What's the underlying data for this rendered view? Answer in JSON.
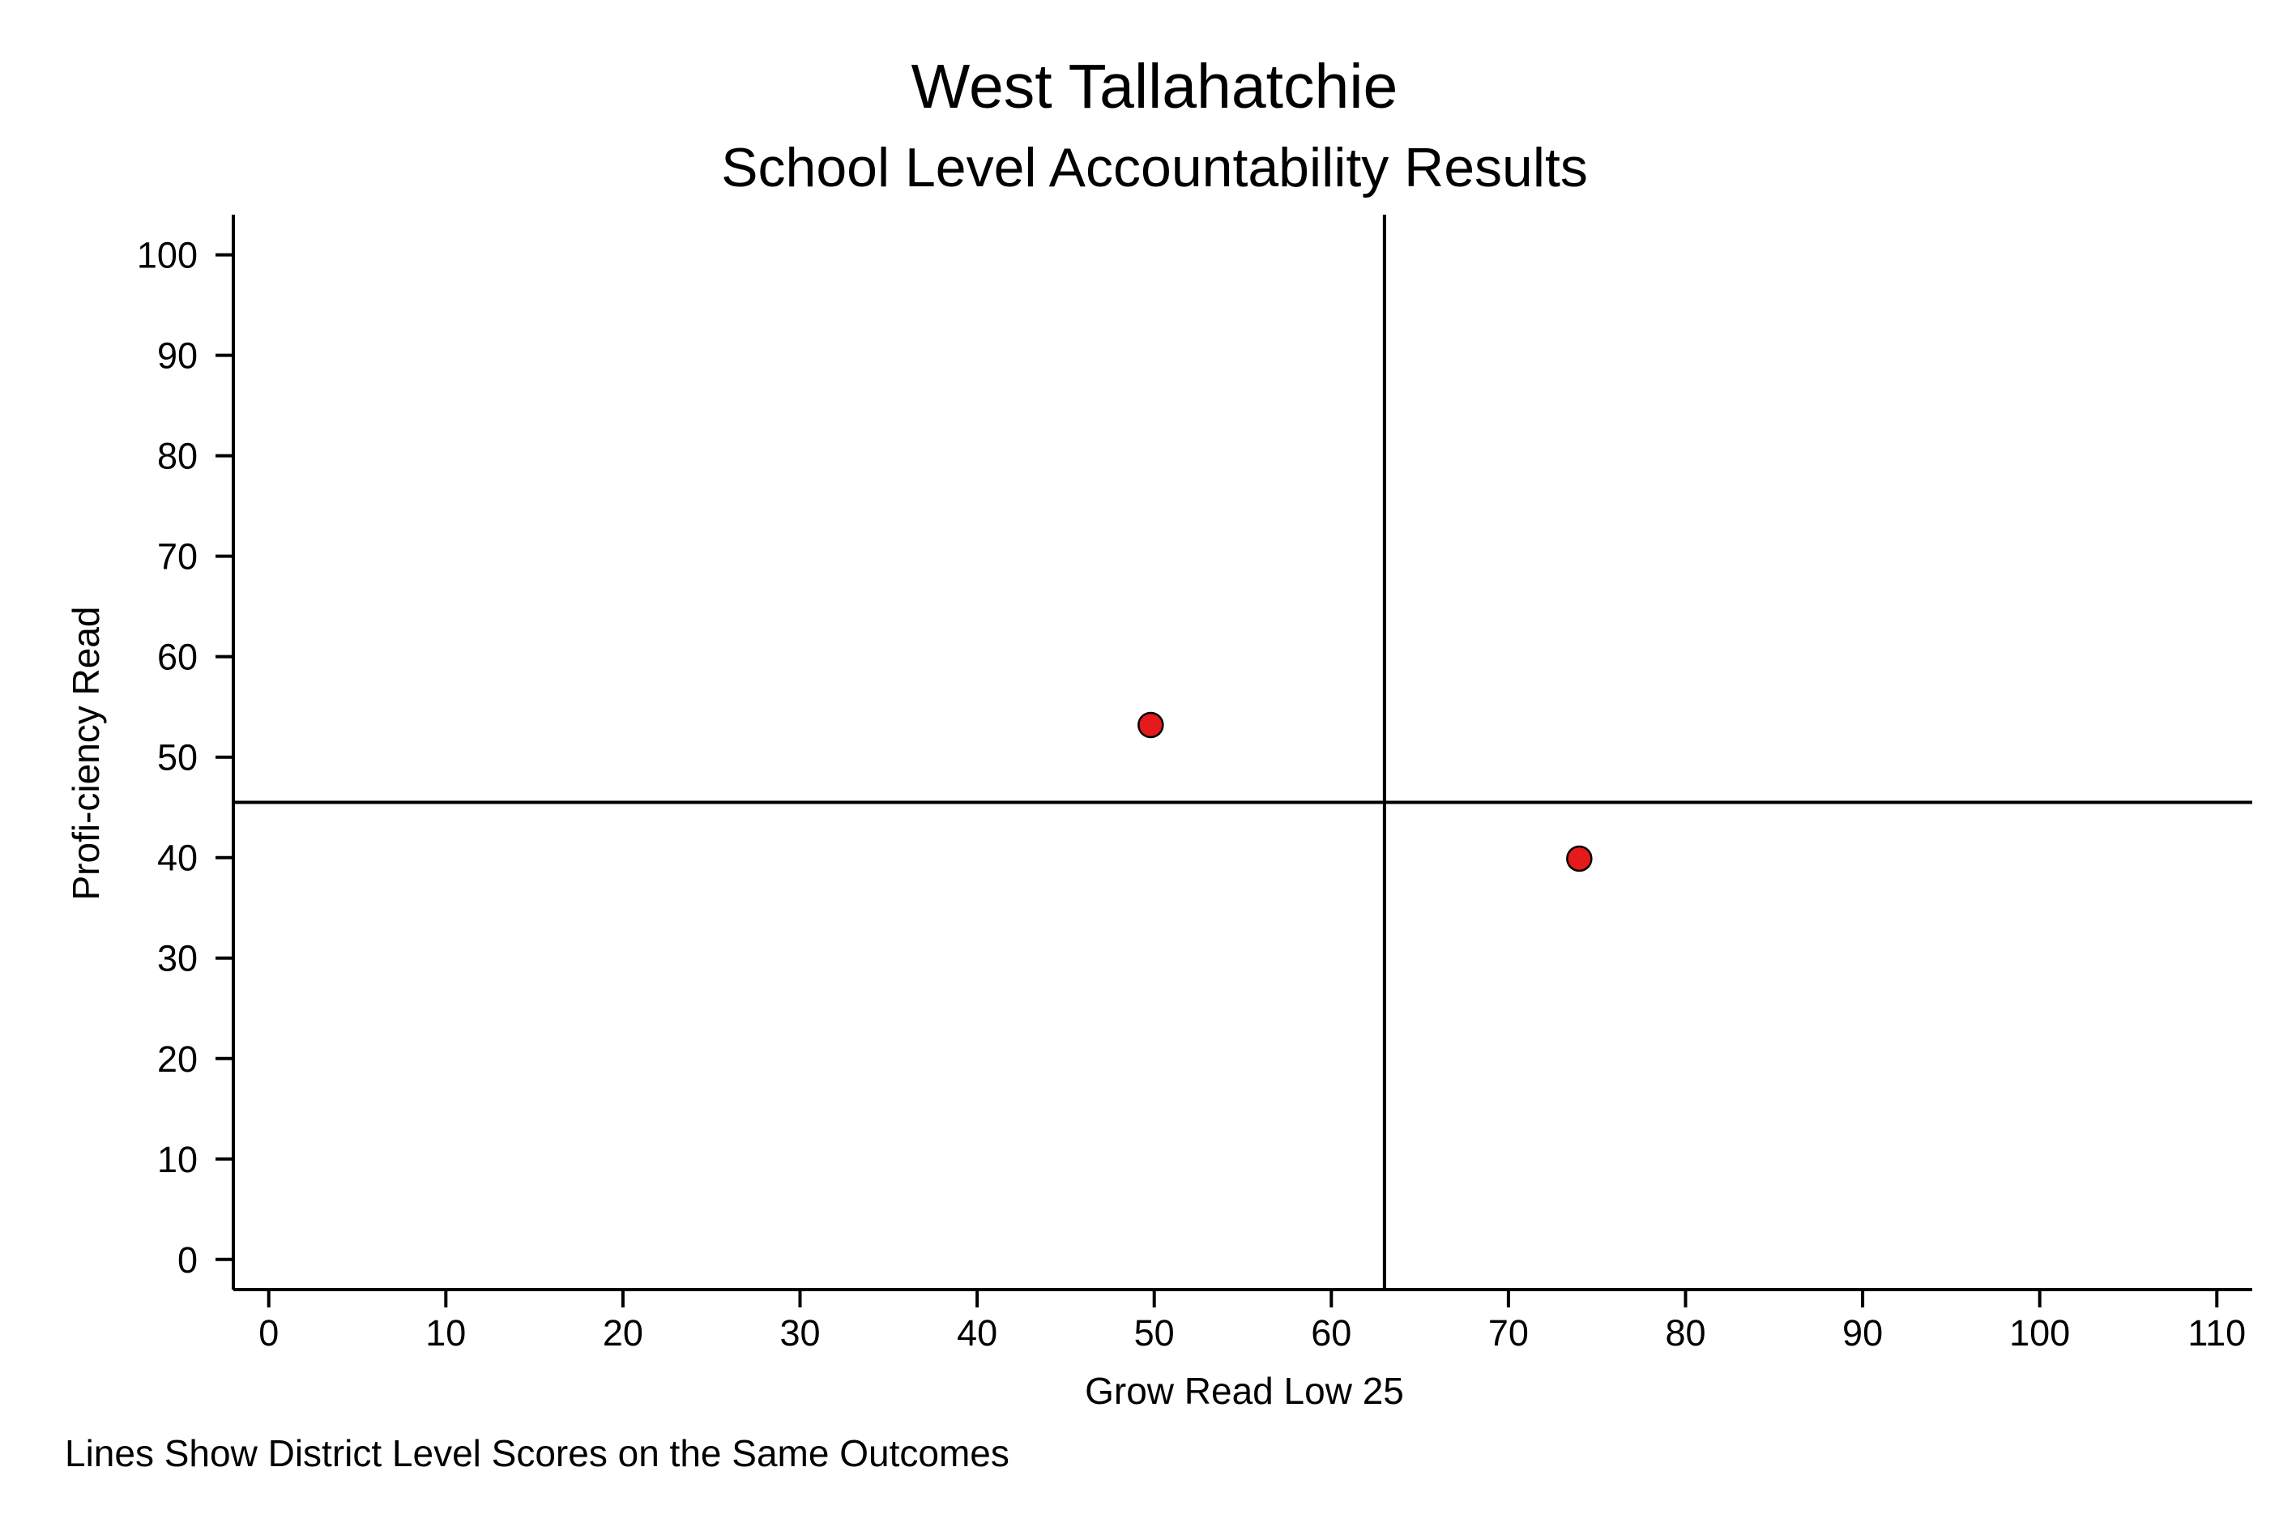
{
  "chart_data": {
    "type": "scatter",
    "title": "West Tallahatchie",
    "subtitle": "School Level Accountability Results",
    "xlabel": "Grow Read Low 25",
    "ylabel": "Profi-ciency Read",
    "note": "Lines Show District Level Scores on the Same Outcomes",
    "xlim": [
      -2,
      112
    ],
    "ylim": [
      -3,
      104
    ],
    "xticks": [
      0,
      10,
      20,
      30,
      40,
      50,
      60,
      70,
      80,
      90,
      100,
      110
    ],
    "yticks": [
      0,
      10,
      20,
      30,
      40,
      50,
      60,
      70,
      80,
      90,
      100
    ],
    "grid": false,
    "points": [
      {
        "x": 49.8,
        "y": 53.2
      },
      {
        "x": 74.0,
        "y": 39.9
      }
    ],
    "reference_lines": {
      "vertical_x": 63,
      "horizontal_y": 45.5
    },
    "marker_color": "#e41a1c",
    "marker_edge_color": "#000000",
    "line_color": "#000000"
  }
}
